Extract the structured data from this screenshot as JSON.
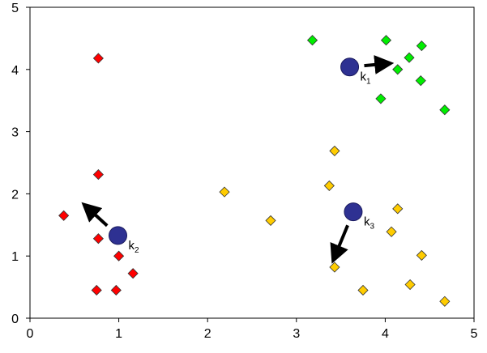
{
  "chart_data": {
    "type": "scatter",
    "title": "",
    "xlabel": "",
    "ylabel": "",
    "xlim": [
      0,
      5
    ],
    "ylim": [
      0,
      5
    ],
    "xticks": [
      "0",
      "1",
      "2",
      "3",
      "4",
      "5"
    ],
    "yticks": [
      "0",
      "1",
      "2",
      "3",
      "4",
      "5"
    ],
    "grid": false,
    "series": [
      {
        "color": "#ff0000",
        "marker": "diamond",
        "points": [
          [
            0.77,
            4.18
          ],
          [
            0.77,
            2.31
          ],
          [
            0.38,
            1.65
          ],
          [
            0.77,
            1.28
          ],
          [
            1.0,
            1.0
          ],
          [
            1.16,
            0.72
          ],
          [
            0.75,
            0.45
          ],
          [
            0.97,
            0.45
          ]
        ]
      },
      {
        "color": "#00ee00",
        "marker": "diamond",
        "points": [
          [
            3.18,
            4.47
          ],
          [
            4.01,
            4.47
          ],
          [
            4.41,
            4.38
          ],
          [
            4.27,
            4.19
          ],
          [
            4.14,
            4.0
          ],
          [
            4.4,
            3.82
          ],
          [
            3.95,
            3.53
          ],
          [
            4.67,
            3.35
          ]
        ]
      },
      {
        "color": "#ffcc00",
        "marker": "diamond",
        "points": [
          [
            3.43,
            2.69
          ],
          [
            2.19,
            2.03
          ],
          [
            3.37,
            2.13
          ],
          [
            4.14,
            1.76
          ],
          [
            2.71,
            1.57
          ],
          [
            4.07,
            1.39
          ],
          [
            4.41,
            1.01
          ],
          [
            3.43,
            0.82
          ],
          [
            4.28,
            0.54
          ],
          [
            3.75,
            0.45
          ],
          [
            4.67,
            0.27
          ]
        ]
      }
    ],
    "centroids": [
      {
        "label": "k",
        "subscript": "1",
        "x": 3.6,
        "y": 4.04,
        "arrow_to": [
          3.99,
          4.09
        ],
        "color": "#2e3192"
      },
      {
        "label": "k",
        "subscript": "2",
        "x": 0.99,
        "y": 1.33,
        "arrow_to": [
          0.66,
          1.76
        ],
        "color": "#2e3192"
      },
      {
        "label": "k",
        "subscript": "3",
        "x": 3.64,
        "y": 1.71,
        "arrow_to": [
          3.44,
          1.02
        ],
        "color": "#2e3192"
      }
    ]
  }
}
